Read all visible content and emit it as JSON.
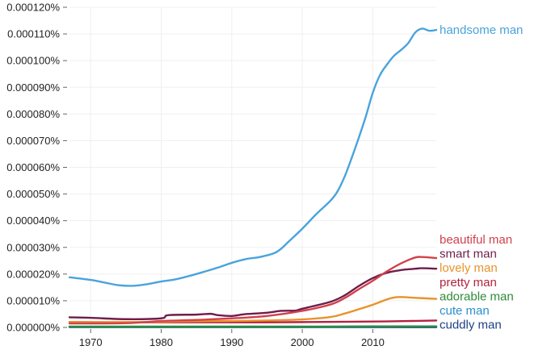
{
  "chart_data": {
    "type": "line",
    "title": "",
    "xlabel": "",
    "ylabel": "",
    "xlim": [
      1967,
      2019
    ],
    "ylim": [
      0,
      0.00012
    ],
    "grid": true,
    "legend": "right-end-labels",
    "x_ticks": [
      {
        "value": 1970,
        "label": "1970"
      },
      {
        "value": 1980,
        "label": "1980"
      },
      {
        "value": 1990,
        "label": "1990"
      },
      {
        "value": 2000,
        "label": "2000"
      },
      {
        "value": 2010,
        "label": "2010"
      }
    ],
    "y_ticks": [
      {
        "value": 0,
        "label": "0.000000%"
      },
      {
        "value": 1e-05,
        "label": "0.000010%"
      },
      {
        "value": 2e-05,
        "label": "0.000020%"
      },
      {
        "value": 3e-05,
        "label": "0.000030%"
      },
      {
        "value": 4e-05,
        "label": "0.000040%"
      },
      {
        "value": 5e-05,
        "label": "0.000050%"
      },
      {
        "value": 6e-05,
        "label": "0.000060%"
      },
      {
        "value": 7e-05,
        "label": "0.000070%"
      },
      {
        "value": 8e-05,
        "label": "0.000080%"
      },
      {
        "value": 9e-05,
        "label": "0.000090%"
      },
      {
        "value": 0.0001,
        "label": "0.000100%"
      },
      {
        "value": 0.00011,
        "label": "0.000110%"
      },
      {
        "value": 0.00012,
        "label": "0.000120%"
      }
    ],
    "series": [
      {
        "name": "handsome man",
        "color": "#4aa3db",
        "points": [
          [
            1967,
            1.88e-05
          ],
          [
            1970,
            1.78e-05
          ],
          [
            1972,
            1.68e-05
          ],
          [
            1974,
            1.58e-05
          ],
          [
            1976,
            1.56e-05
          ],
          [
            1978,
            1.62e-05
          ],
          [
            1980,
            1.72e-05
          ],
          [
            1982,
            1.8e-05
          ],
          [
            1984,
            1.93e-05
          ],
          [
            1986,
            2.08e-05
          ],
          [
            1988,
            2.24e-05
          ],
          [
            1990,
            2.42e-05
          ],
          [
            1992,
            2.56e-05
          ],
          [
            1994,
            2.64e-05
          ],
          [
            1996,
            2.78e-05
          ],
          [
            1997,
            2.95e-05
          ],
          [
            1998,
            3.2e-05
          ],
          [
            2000,
            3.7e-05
          ],
          [
            2002,
            4.25e-05
          ],
          [
            2004,
            4.75e-05
          ],
          [
            2005,
            5.1e-05
          ],
          [
            2006,
            5.65e-05
          ],
          [
            2007,
            6.35e-05
          ],
          [
            2008,
            7.1e-05
          ],
          [
            2009,
            7.9e-05
          ],
          [
            2010,
            8.8e-05
          ],
          [
            2011,
            9.45e-05
          ],
          [
            2012,
            9.85e-05
          ],
          [
            2013,
            0.0001018
          ],
          [
            2014,
            0.000104
          ],
          [
            2015,
            0.0001065
          ],
          [
            2016,
            0.0001105
          ],
          [
            2017,
            0.000112
          ],
          [
            2018,
            0.0001112
          ],
          [
            2019,
            0.0001115
          ]
        ]
      },
      {
        "name": "beautiful man",
        "color": "#d1414b",
        "points": [
          [
            1967,
            1.5e-06
          ],
          [
            1975,
            1.6e-06
          ],
          [
            1980,
            2.4e-06
          ],
          [
            1985,
            2.8e-06
          ],
          [
            1990,
            3.4e-06
          ],
          [
            1995,
            4.3e-06
          ],
          [
            2000,
            6.2e-06
          ],
          [
            2004,
            8.6e-06
          ],
          [
            2006,
            1.1e-05
          ],
          [
            2008,
            1.43e-05
          ],
          [
            2010,
            1.75e-05
          ],
          [
            2012,
            2.1e-05
          ],
          [
            2014,
            2.4e-05
          ],
          [
            2016,
            2.62e-05
          ],
          [
            2017,
            2.64e-05
          ],
          [
            2019,
            2.6e-05
          ]
        ]
      },
      {
        "name": "smart man",
        "color": "#6f1d4a",
        "points": [
          [
            1967,
            3.8e-06
          ],
          [
            1970,
            3.6e-06
          ],
          [
            1975,
            3.1e-06
          ],
          [
            1980,
            3.4e-06
          ],
          [
            1981,
            4.6e-06
          ],
          [
            1985,
            4.8e-06
          ],
          [
            1987,
            5.1e-06
          ],
          [
            1988,
            4.6e-06
          ],
          [
            1990,
            4.3e-06
          ],
          [
            1992,
            5e-06
          ],
          [
            1995,
            5.5e-06
          ],
          [
            1997,
            6.2e-06
          ],
          [
            1999,
            6.3e-06
          ],
          [
            2000,
            7e-06
          ],
          [
            2004,
            9.6e-06
          ],
          [
            2006,
            1.2e-05
          ],
          [
            2008,
            1.55e-05
          ],
          [
            2010,
            1.85e-05
          ],
          [
            2012,
            2.05e-05
          ],
          [
            2014,
            2.15e-05
          ],
          [
            2016,
            2.2e-05
          ],
          [
            2017,
            2.22e-05
          ],
          [
            2019,
            2.2e-05
          ]
        ]
      },
      {
        "name": "lovely man",
        "color": "#e8922c",
        "points": [
          [
            1967,
            2e-06
          ],
          [
            1975,
            2e-06
          ],
          [
            1980,
            2.1e-06
          ],
          [
            1985,
            2.3e-06
          ],
          [
            1990,
            2.4e-06
          ],
          [
            1995,
            2.6e-06
          ],
          [
            2000,
            3e-06
          ],
          [
            2004,
            3.9e-06
          ],
          [
            2006,
            5.2e-06
          ],
          [
            2008,
            6.8e-06
          ],
          [
            2010,
            8.5e-06
          ],
          [
            2012,
            1.05e-05
          ],
          [
            2013,
            1.12e-05
          ],
          [
            2014,
            1.14e-05
          ],
          [
            2016,
            1.11e-05
          ],
          [
            2019,
            1.07e-05
          ]
        ]
      },
      {
        "name": "pretty man",
        "color": "#b3223f",
        "points": [
          [
            1967,
            2e-06
          ],
          [
            1975,
            1.9e-06
          ],
          [
            1980,
            1.9e-06
          ],
          [
            1985,
            1.9e-06
          ],
          [
            1990,
            1.9e-06
          ],
          [
            1995,
            1.9e-06
          ],
          [
            2000,
            2e-06
          ],
          [
            2005,
            2.1e-06
          ],
          [
            2010,
            2.2e-06
          ],
          [
            2015,
            2.4e-06
          ],
          [
            2019,
            2.6e-06
          ]
        ]
      },
      {
        "name": "adorable man",
        "color": "#2e8b3a",
        "points": [
          [
            1967,
            3e-07
          ],
          [
            1980,
            3e-07
          ],
          [
            1990,
            3e-07
          ],
          [
            2000,
            3e-07
          ],
          [
            2010,
            4e-07
          ],
          [
            2019,
            4e-07
          ]
        ]
      },
      {
        "name": "cute man",
        "color": "#2a8fd0",
        "points": [
          [
            1967,
            2e-07
          ],
          [
            1980,
            2e-07
          ],
          [
            1990,
            2e-07
          ],
          [
            2000,
            2e-07
          ],
          [
            2010,
            3e-07
          ],
          [
            2019,
            4e-07
          ]
        ]
      },
      {
        "name": "cuddly man",
        "color": "#1f3f86",
        "points": [
          [
            1967,
            1e-07
          ],
          [
            1980,
            1e-07
          ],
          [
            1990,
            1e-07
          ],
          [
            2000,
            1e-07
          ],
          [
            2010,
            1e-07
          ],
          [
            2019,
            1e-07
          ]
        ]
      }
    ]
  }
}
